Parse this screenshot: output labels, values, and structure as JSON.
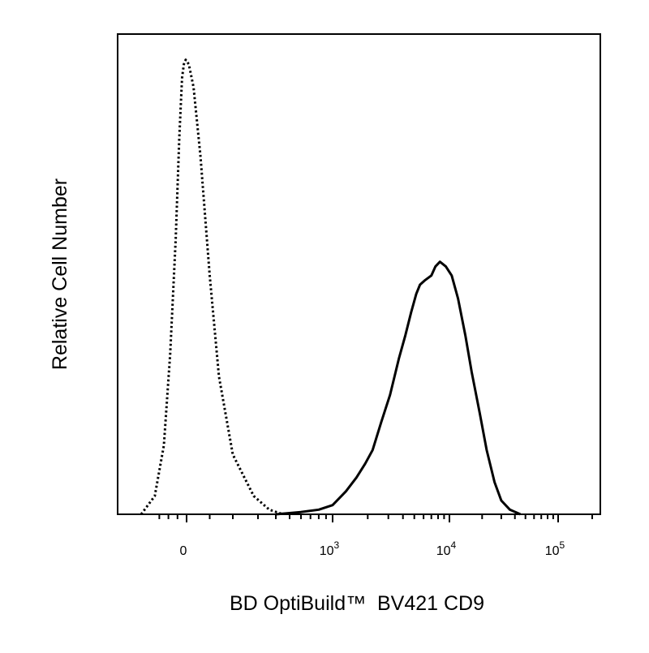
{
  "chart_data": {
    "type": "line",
    "title": "",
    "xlabel": "BD OptiBuild™  BV421 CD9",
    "ylabel": "Relative Cell Number",
    "x_scale": "biexponential",
    "xlim": [
      -400,
      200000
    ],
    "ylim": [
      0,
      100
    ],
    "grid": false,
    "legend": "none",
    "x_ticks": [
      {
        "value": 0,
        "base": "0",
        "exp": ""
      },
      {
        "value": 1000,
        "base": "10",
        "exp": "3"
      },
      {
        "value": 10000,
        "base": "10",
        "exp": "4"
      },
      {
        "value": 100000,
        "base": "10",
        "exp": "5"
      }
    ],
    "series": [
      {
        "style": "dotted",
        "color": "#000000",
        "x": [
          -500,
          -350,
          -250,
          -180,
          -120,
          -80,
          -50,
          -30,
          -10,
          10,
          30,
          60,
          100,
          140,
          200,
          280,
          360,
          450
        ],
        "y": [
          0,
          4,
          15,
          35,
          60,
          82,
          95,
          98,
          99,
          98,
          93,
          78,
          52,
          30,
          13,
          4,
          1,
          0
        ]
      },
      {
        "style": "solid",
        "color": "#000000",
        "x": [
          400,
          600,
          800,
          1000,
          1300,
          1600,
          1900,
          2200,
          2600,
          3100,
          3700,
          4200,
          4700,
          5200,
          5600,
          6200,
          7000,
          7600,
          8300,
          9300,
          10500,
          12000,
          14000,
          16000,
          19000,
          22000,
          26000,
          30000,
          36000,
          45000
        ],
        "y": [
          0,
          0.5,
          1,
          2,
          5,
          8,
          11,
          14,
          20,
          26,
          34,
          39,
          44,
          48,
          50,
          51,
          52,
          54,
          55,
          54,
          52,
          47,
          39,
          31,
          22,
          14,
          7,
          3,
          1,
          0
        ]
      }
    ]
  }
}
